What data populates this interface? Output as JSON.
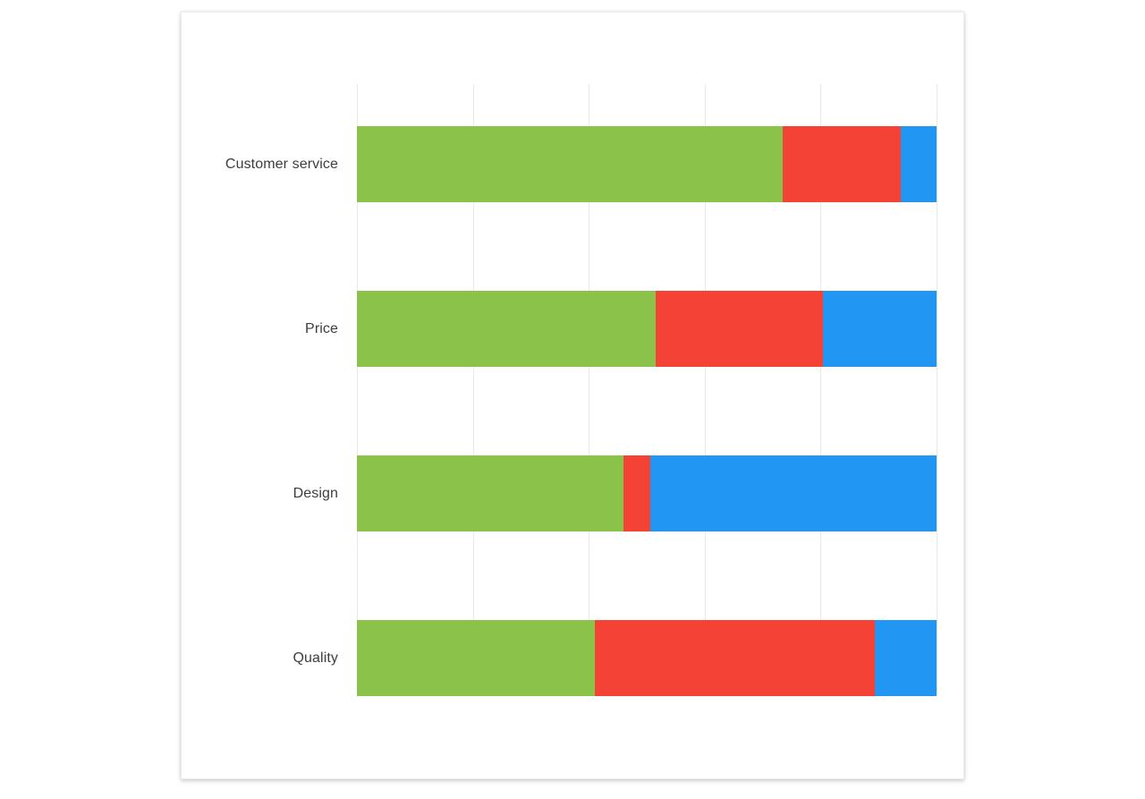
{
  "chart_data": {
    "type": "bar",
    "orientation": "horizontal",
    "stacked": "percent",
    "title": "",
    "xlabel": "",
    "ylabel": "",
    "categories": [
      "Customer service",
      "Price",
      "Design",
      "Quality"
    ],
    "series": [
      {
        "name": "green",
        "color": "#8BC34A",
        "values": [
          73.5,
          51.5,
          46.0,
          41.0
        ]
      },
      {
        "name": "red",
        "color": "#F44336",
        "values": [
          20.3,
          28.9,
          4.6,
          48.4
        ]
      },
      {
        "name": "blue",
        "color": "#2196F3",
        "values": [
          6.2,
          19.6,
          49.4,
          10.6
        ]
      }
    ],
    "xlim": [
      0,
      100
    ],
    "grid": "vertical",
    "gridlines": {
      "count": 6,
      "color": "#e9e9e9"
    },
    "legend": "none",
    "tick_labels_visible": false
  },
  "page": {
    "background_color": "#ffffff",
    "card_background_color": "#ffffff",
    "label_color": "#3d3d3d"
  }
}
